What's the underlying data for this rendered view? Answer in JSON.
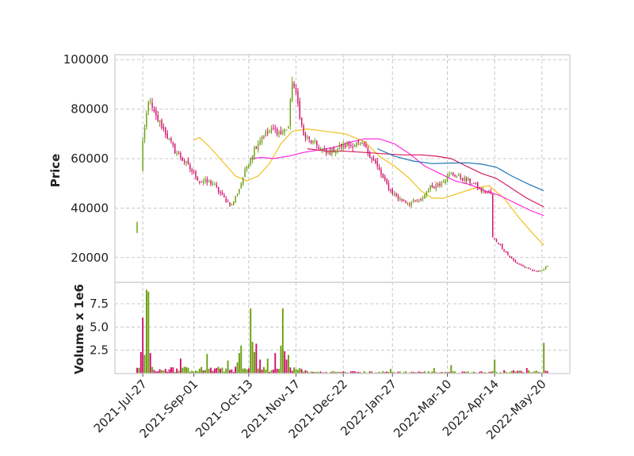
{
  "chart_data": {
    "type": "candlestick",
    "price_panel": {
      "ylabel": "Price",
      "yticks": [
        20000,
        40000,
        60000,
        80000,
        100000
      ],
      "ylim": [
        10000,
        102000
      ],
      "grid": true
    },
    "volume_panel": {
      "ylabel": "Volume x 1e6",
      "yticks": [
        "2.5",
        "5.0",
        "7.5"
      ],
      "ytick_values": [
        2.5,
        5.0,
        7.5
      ],
      "ylim": [
        0,
        9.8
      ],
      "grid": true
    },
    "x_ticks": [
      "2021-Jul-27",
      "2021-Sep-01",
      "2021-Oct-13",
      "2021-Nov-17",
      "2021-Dec-22",
      "2022-Jan-27",
      "2022-Mar-10",
      "2022-Apr-14",
      "2022-May-20"
    ],
    "x_tick_index": [
      3,
      30,
      59,
      84,
      109,
      135,
      164,
      189,
      214
    ],
    "bar_count": 218,
    "colors": {
      "up": "#6a9e10",
      "down": "#d0106a",
      "ma1": "#f2c01a",
      "ma2": "#ff2be0",
      "ma3": "#d81b60",
      "ma4": "#1f77b4",
      "grid": "#c8c8c8",
      "frame": "#d6d6d6"
    },
    "candles_price_anchors": [
      [
        0,
        34000
      ],
      [
        3,
        66000
      ],
      [
        6,
        84000
      ],
      [
        9,
        78000
      ],
      [
        14,
        72000
      ],
      [
        20,
        63000
      ],
      [
        26,
        58000
      ],
      [
        33,
        51000
      ],
      [
        40,
        50000
      ],
      [
        46,
        44000
      ],
      [
        50,
        41000
      ],
      [
        54,
        48000
      ],
      [
        58,
        57000
      ],
      [
        62,
        64000
      ],
      [
        66,
        69000
      ],
      [
        72,
        72000
      ],
      [
        76,
        70000
      ],
      [
        80,
        73000
      ],
      [
        82,
        92000
      ],
      [
        85,
        82000
      ],
      [
        88,
        69000
      ],
      [
        94,
        66000
      ],
      [
        100,
        62000
      ],
      [
        108,
        65000
      ],
      [
        116,
        66000
      ],
      [
        120,
        65000
      ],
      [
        126,
        58000
      ],
      [
        130,
        52000
      ],
      [
        134,
        47000
      ],
      [
        138,
        44000
      ],
      [
        144,
        42000
      ],
      [
        150,
        43000
      ],
      [
        154,
        48000
      ],
      [
        160,
        50000
      ],
      [
        166,
        54000
      ],
      [
        172,
        52000
      ],
      [
        178,
        50000
      ],
      [
        182,
        47000
      ],
      [
        187,
        46000
      ],
      [
        188,
        28000
      ],
      [
        192,
        25000
      ],
      [
        196,
        21000
      ],
      [
        200,
        18000
      ],
      [
        205,
        16000
      ],
      [
        210,
        14500
      ],
      [
        215,
        15000
      ],
      [
        217,
        17000
      ]
    ],
    "volume_spikes": [
      [
        2,
        2.3,
        "down"
      ],
      [
        3,
        6.0,
        "down"
      ],
      [
        4,
        2.0,
        "up"
      ],
      [
        5,
        9.0,
        "up"
      ],
      [
        6,
        8.8,
        "up"
      ],
      [
        7,
        2.2,
        "down"
      ],
      [
        23,
        1.6,
        "down"
      ],
      [
        37,
        2.1,
        "up"
      ],
      [
        48,
        1.4,
        "up"
      ],
      [
        53,
        1.2,
        "up"
      ],
      [
        54,
        2.2,
        "up"
      ],
      [
        55,
        3.0,
        "up"
      ],
      [
        60,
        7.0,
        "up"
      ],
      [
        61,
        3.4,
        "up"
      ],
      [
        62,
        2.3,
        "up"
      ],
      [
        63,
        3.2,
        "down"
      ],
      [
        65,
        1.5,
        "down"
      ],
      [
        69,
        1.6,
        "up"
      ],
      [
        73,
        2.2,
        "down"
      ],
      [
        76,
        3.0,
        "up"
      ],
      [
        77,
        7.0,
        "up"
      ],
      [
        78,
        2.4,
        "down"
      ],
      [
        79,
        1.5,
        "down"
      ],
      [
        80,
        2.0,
        "up"
      ],
      [
        134,
        0.5,
        "up"
      ],
      [
        157,
        0.6,
        "up"
      ],
      [
        166,
        0.9,
        "up"
      ],
      [
        189,
        1.5,
        "up"
      ],
      [
        206,
        0.6,
        "down"
      ],
      [
        215,
        3.3,
        "up"
      ]
    ],
    "moving_averages": [
      {
        "color_key": "ma1",
        "points": [
          [
            30,
            67500
          ],
          [
            33,
            68500
          ],
          [
            38,
            65000
          ],
          [
            45,
            59000
          ],
          [
            52,
            53000
          ],
          [
            58,
            51000
          ],
          [
            64,
            53000
          ],
          [
            70,
            58000
          ],
          [
            76,
            66000
          ],
          [
            82,
            71000
          ],
          [
            90,
            72000
          ],
          [
            100,
            71000
          ],
          [
            110,
            70000
          ],
          [
            120,
            67000
          ],
          [
            128,
            61000
          ],
          [
            136,
            57000
          ],
          [
            144,
            52000
          ],
          [
            150,
            47000
          ],
          [
            156,
            44000
          ],
          [
            162,
            44000
          ],
          [
            170,
            46000
          ],
          [
            178,
            48000
          ],
          [
            186,
            49000
          ],
          [
            194,
            44000
          ],
          [
            202,
            36000
          ],
          [
            210,
            29000
          ],
          [
            215,
            25000
          ]
        ]
      },
      {
        "color_key": "ma2",
        "points": [
          [
            60,
            60000
          ],
          [
            66,
            60500
          ],
          [
            72,
            60000
          ],
          [
            80,
            61000
          ],
          [
            88,
            62500
          ],
          [
            96,
            63500
          ],
          [
            104,
            64500
          ],
          [
            112,
            66500
          ],
          [
            120,
            68000
          ],
          [
            128,
            68000
          ],
          [
            136,
            66000
          ],
          [
            144,
            62000
          ],
          [
            152,
            57000
          ],
          [
            160,
            54000
          ],
          [
            168,
            51000
          ],
          [
            176,
            49500
          ],
          [
            184,
            47000
          ],
          [
            192,
            45000
          ],
          [
            200,
            42000
          ],
          [
            208,
            39000
          ],
          [
            215,
            37000
          ]
        ]
      },
      {
        "color_key": "ma3",
        "points": [
          [
            90,
            64000
          ],
          [
            100,
            63000
          ],
          [
            110,
            63000
          ],
          [
            120,
            62500
          ],
          [
            130,
            62000
          ],
          [
            140,
            61500
          ],
          [
            150,
            61500
          ],
          [
            158,
            61000
          ],
          [
            166,
            60000
          ],
          [
            174,
            57000
          ],
          [
            182,
            54000
          ],
          [
            190,
            52000
          ],
          [
            198,
            48000
          ],
          [
            206,
            44000
          ],
          [
            215,
            40500
          ]
        ]
      },
      {
        "color_key": "ma4",
        "points": [
          [
            127,
            64000
          ],
          [
            136,
            61000
          ],
          [
            146,
            59000
          ],
          [
            156,
            58000
          ],
          [
            166,
            58200
          ],
          [
            174,
            58300
          ],
          [
            182,
            57800
          ],
          [
            190,
            56500
          ],
          [
            198,
            53000
          ],
          [
            206,
            50000
          ],
          [
            215,
            47000
          ]
        ]
      }
    ]
  }
}
